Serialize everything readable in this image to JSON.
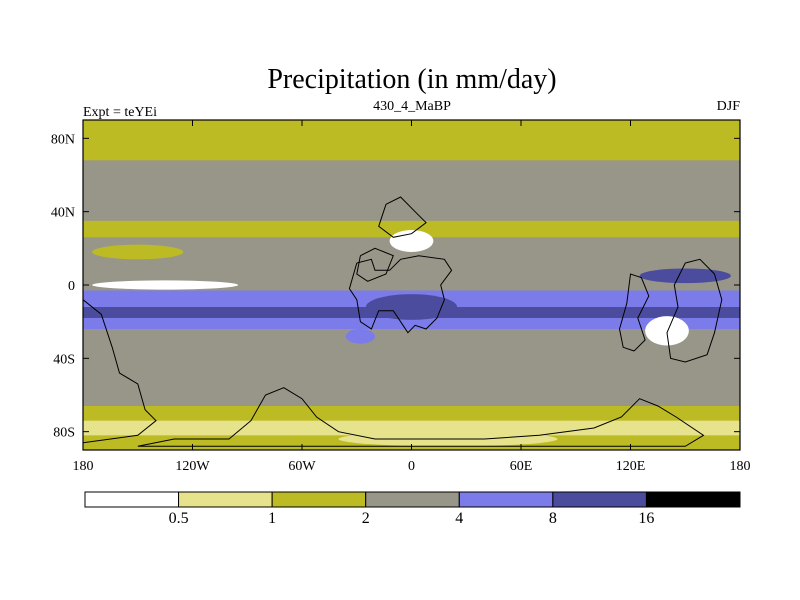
{
  "chart_data": {
    "type": "heatmap",
    "title": "Precipitation (in mm/day)",
    "subtitle_left": "Expt = teYEi",
    "subtitle_center": "430_4_MaBP",
    "subtitle_right": "DJF",
    "x_range": [
      -180,
      180
    ],
    "y_range": [
      -90,
      90
    ],
    "x_ticks": [
      {
        "value": -180,
        "label": "180"
      },
      {
        "value": -120,
        "label": "120W"
      },
      {
        "value": -60,
        "label": "60W"
      },
      {
        "value": 0,
        "label": "0"
      },
      {
        "value": 60,
        "label": "60E"
      },
      {
        "value": 120,
        "label": "120E"
      },
      {
        "value": 180,
        "label": "180"
      }
    ],
    "y_ticks": [
      {
        "value": 80,
        "label": "80N"
      },
      {
        "value": 40,
        "label": "40N"
      },
      {
        "value": 0,
        "label": "0"
      },
      {
        "value": -40,
        "label": "40S"
      },
      {
        "value": -80,
        "label": "80S"
      }
    ],
    "levels": [
      0.5,
      1,
      2,
      4,
      8,
      16
    ],
    "level_labels": [
      "0.5",
      "1",
      "2",
      "4",
      "8",
      "16"
    ],
    "colors": [
      "#ffffff",
      "#e6e38c",
      "#bdbb23",
      "#989688",
      "#7b7bea",
      "#4c4c9e",
      "#000000"
    ],
    "zonal_profile": [
      {
        "lat": 90,
        "value": 1.5
      },
      {
        "lat": 82,
        "value": 1.6
      },
      {
        "lat": 76,
        "value": 0.9
      },
      {
        "lat": 68,
        "value": 1.5
      },
      {
        "lat": 60,
        "value": 2.5
      },
      {
        "lat": 52,
        "value": 5.0
      },
      {
        "lat": 45,
        "value": 2.8
      },
      {
        "lat": 35,
        "value": 1.4
      },
      {
        "lat": 26,
        "value": 2.5
      },
      {
        "lat": 18,
        "value": 2.8
      },
      {
        "lat": 10,
        "value": 5.0
      },
      {
        "lat": 3,
        "value": 1.5
      },
      {
        "lat": -3,
        "value": 3.0
      },
      {
        "lat": -8,
        "value": 6.0
      },
      {
        "lat": -12,
        "value": 9.0
      },
      {
        "lat": -18,
        "value": 10.0
      },
      {
        "lat": -24,
        "value": 5.0
      },
      {
        "lat": -32,
        "value": 2.5
      },
      {
        "lat": -45,
        "value": 2.4
      },
      {
        "lat": -58,
        "value": 2.5
      },
      {
        "lat": -66,
        "value": 1.5
      },
      {
        "lat": -74,
        "value": 0.7
      },
      {
        "lat": -82,
        "value": 1.2
      },
      {
        "lat": -90,
        "value": 0.8
      }
    ],
    "features": [
      {
        "name": "dry-equatorial-pacific",
        "lon": -135,
        "lat": 0,
        "rx": 40,
        "ry": 2.5,
        "value": 0.3
      },
      {
        "name": "sahara-dry",
        "lon": 0,
        "lat": 24,
        "rx": 12,
        "ry": 6,
        "value": 0.2
      },
      {
        "name": "west-pacific-wet",
        "lon": 150,
        "lat": 5,
        "rx": 25,
        "ry": 4,
        "value": 9.5
      },
      {
        "name": "australia-dry",
        "lon": 140,
        "lat": -25,
        "rx": 12,
        "ry": 8,
        "value": 0.3
      },
      {
        "name": "antarctic-interior",
        "lon": 20,
        "lat": -84,
        "rx": 60,
        "ry": 4,
        "value": 0.6
      },
      {
        "name": "south-atlantic-wet",
        "lon": -28,
        "lat": -28,
        "rx": 8,
        "ry": 4,
        "value": 4.5
      },
      {
        "name": "gondwana-wet",
        "lon": 0,
        "lat": -12,
        "rx": 25,
        "ry": 7,
        "value": 10.5
      },
      {
        "name": "north-pacific-storm",
        "lon": -150,
        "lat": 18,
        "rx": 25,
        "ry": 4,
        "value": 1.2
      }
    ],
    "land_outlines": [
      {
        "name": "gondwana-africa",
        "points": [
          [
            -30,
            12
          ],
          [
            -22,
            14
          ],
          [
            -20,
            8
          ],
          [
            -12,
            8
          ],
          [
            -6,
            14
          ],
          [
            4,
            16
          ],
          [
            18,
            14
          ],
          [
            22,
            8
          ],
          [
            16,
            0
          ],
          [
            18,
            -8
          ],
          [
            14,
            -18
          ],
          [
            8,
            -24
          ],
          [
            2,
            -22
          ],
          [
            -2,
            -26
          ],
          [
            -6,
            -20
          ],
          [
            -10,
            -14
          ],
          [
            -18,
            -14
          ],
          [
            -22,
            -24
          ],
          [
            -28,
            -20
          ],
          [
            -30,
            -8
          ],
          [
            -34,
            -2
          ],
          [
            -30,
            12
          ]
        ]
      },
      {
        "name": "baltica",
        "points": [
          [
            -14,
            44
          ],
          [
            -6,
            48
          ],
          [
            2,
            40
          ],
          [
            8,
            34
          ],
          [
            0,
            28
          ],
          [
            -10,
            26
          ],
          [
            -18,
            32
          ],
          [
            -14,
            44
          ]
        ]
      },
      {
        "name": "laurentia",
        "points": [
          [
            -28,
            16
          ],
          [
            -20,
            20
          ],
          [
            -10,
            16
          ],
          [
            -14,
            6
          ],
          [
            -24,
            2
          ],
          [
            -30,
            6
          ],
          [
            -28,
            16
          ]
        ]
      },
      {
        "name": "east-asia-block",
        "points": [
          [
            122,
            -36
          ],
          [
            128,
            -30
          ],
          [
            124,
            -18
          ],
          [
            130,
            -6
          ],
          [
            126,
            4
          ],
          [
            120,
            6
          ],
          [
            118,
            -10
          ],
          [
            114,
            -24
          ],
          [
            116,
            -34
          ],
          [
            122,
            -36
          ]
        ]
      },
      {
        "name": "siberia",
        "points": [
          [
            150,
            12
          ],
          [
            158,
            14
          ],
          [
            166,
            6
          ],
          [
            170,
            -8
          ],
          [
            166,
            -26
          ],
          [
            162,
            -38
          ],
          [
            150,
            -42
          ],
          [
            142,
            -40
          ],
          [
            140,
            -26
          ],
          [
            146,
            -12
          ],
          [
            144,
            0
          ],
          [
            150,
            12
          ]
        ]
      },
      {
        "name": "antarctica",
        "points": [
          [
            -150,
            -88
          ],
          [
            -130,
            -84
          ],
          [
            -100,
            -84
          ],
          [
            -88,
            -74
          ],
          [
            -80,
            -60
          ],
          [
            -70,
            -56
          ],
          [
            -60,
            -62
          ],
          [
            -52,
            -72
          ],
          [
            -40,
            -80
          ],
          [
            -20,
            -84
          ],
          [
            0,
            -84
          ],
          [
            40,
            -84
          ],
          [
            70,
            -82
          ],
          [
            100,
            -78
          ],
          [
            115,
            -72
          ],
          [
            125,
            -62
          ],
          [
            135,
            -66
          ],
          [
            145,
            -72
          ],
          [
            160,
            -82
          ],
          [
            150,
            -88
          ],
          [
            -150,
            -88
          ]
        ]
      },
      {
        "name": "west-coast-fragment",
        "points": [
          [
            -180,
            -8
          ],
          [
            -170,
            -16
          ],
          [
            -164,
            -34
          ],
          [
            -160,
            -48
          ],
          [
            -150,
            -54
          ],
          [
            -146,
            -68
          ],
          [
            -140,
            -74
          ],
          [
            -150,
            -82
          ],
          [
            -180,
            -86
          ]
        ]
      }
    ]
  }
}
